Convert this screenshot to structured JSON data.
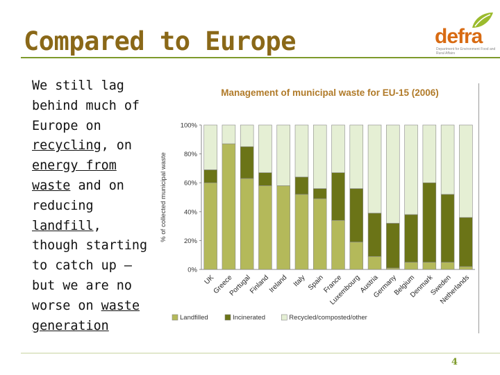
{
  "slide": {
    "title": "Compared to Europe",
    "page_number": "4",
    "body": [
      {
        "text": "We still lag behind much of Europe on ",
        "u": false
      },
      {
        "text": "recycling",
        "u": true
      },
      {
        "text": ", on ",
        "u": false
      },
      {
        "text": "energy from waste",
        "u": true
      },
      {
        "text": " and on reducing ",
        "u": false
      },
      {
        "text": "landfill",
        "u": true
      },
      {
        "text": ", though starting to catch up – but we are no worse on ",
        "u": false
      },
      {
        "text": "waste generation",
        "u": true
      }
    ]
  },
  "logo": {
    "word": "defra",
    "tagline": "Department for Environment Food and Rural Affairs",
    "color": "#d86b13"
  },
  "colors": {
    "landfilled": "#b4b95a",
    "incinerated": "#6b7417",
    "recycled": "#e5efd4",
    "title_text": "#8a6818",
    "chart_title": "#b07a28",
    "accent": "#7d9a2a"
  },
  "chart_data": {
    "type": "bar",
    "stacked": true,
    "title": "Management of municipal waste for EU-15 (2006)",
    "xlabel": "",
    "ylabel": "% of collected municipal waste",
    "ylim": [
      0,
      100
    ],
    "yticks": [
      "0%",
      "20%",
      "40%",
      "60%",
      "80%",
      "100%"
    ],
    "categories": [
      "UK",
      "Greece",
      "Portugal",
      "Finland",
      "Ireland",
      "Italy",
      "Spain",
      "France",
      "Luxembourg",
      "Austria",
      "Germany",
      "Belgium",
      "Denmark",
      "Sweden",
      "Netherlands"
    ],
    "series": [
      {
        "name": "Landfilled",
        "values": [
          60,
          87,
          63,
          58,
          58,
          52,
          49,
          34,
          19,
          9,
          1,
          5,
          5,
          5,
          2
        ]
      },
      {
        "name": "Incinerated",
        "values": [
          9,
          0,
          22,
          9,
          0,
          12,
          7,
          33,
          37,
          30,
          31,
          33,
          55,
          47,
          34
        ]
      },
      {
        "name": "Recycled/composted/other",
        "values": [
          31,
          13,
          15,
          33,
          42,
          36,
          44,
          33,
          44,
          61,
          68,
          62,
          40,
          48,
          64
        ]
      }
    ],
    "legend_position": "bottom",
    "grid": false
  }
}
